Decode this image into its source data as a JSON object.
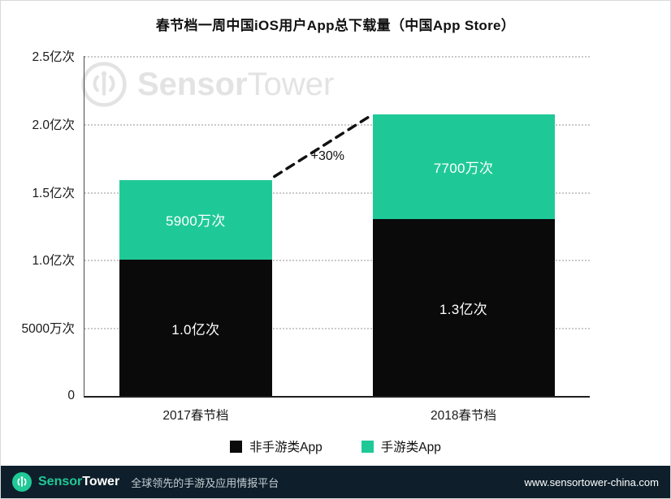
{
  "title": "春节档一周中国iOS用户App总下载量（中国App Store）",
  "brand": {
    "sensor": "Sensor",
    "tower": "Tower"
  },
  "chart_data": {
    "type": "bar",
    "stacked": true,
    "title": "春节档一周中国iOS用户App总下载量（中国App Store）",
    "categories": [
      "2017春节档",
      "2018春节档"
    ],
    "series": [
      {
        "name": "非手游类App",
        "color": "#0a0a0a",
        "values_yi_ci": [
          1.0,
          1.3
        ],
        "data_labels": [
          "1.0亿次",
          "1.3亿次"
        ]
      },
      {
        "name": "手游类App",
        "color": "#1fc997",
        "values_yi_ci": [
          0.59,
          0.77
        ],
        "data_labels": [
          "5900万次",
          "7700万次"
        ]
      }
    ],
    "totals_yi_ci": [
      1.59,
      2.07
    ],
    "annotation": "+30%",
    "unit": "亿次",
    "ylim": [
      0,
      2.5
    ],
    "y_ticks": [
      {
        "value": 0,
        "label": "0"
      },
      {
        "value": 0.5,
        "label": "5000万次"
      },
      {
        "value": 1.0,
        "label": "1.0亿次"
      },
      {
        "value": 1.5,
        "label": "1.5亿次"
      },
      {
        "value": 2.0,
        "label": "2.0亿次"
      },
      {
        "value": 2.5,
        "label": "2.5亿次"
      }
    ],
    "grid": "dotted-horizontal",
    "legend_position": "bottom"
  },
  "footer": {
    "tagline": "全球领先的手游及应用情报平台",
    "url": "www.sensortower-china.com",
    "background": "#0e1f2b"
  },
  "colors": {
    "green": "#1fc997",
    "black": "#0a0a0a",
    "footer_bg": "#0e1f2b"
  }
}
